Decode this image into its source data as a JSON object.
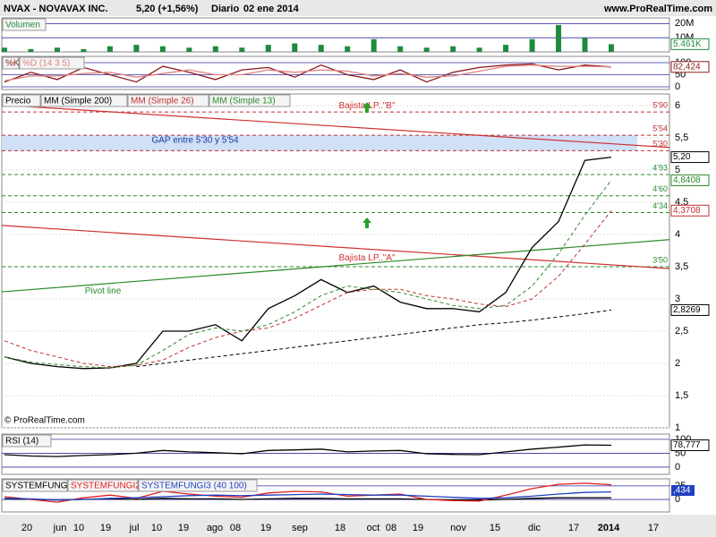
{
  "header": {
    "symbol": "NVAX - NOVAVAX INC.",
    "price": "5,20 (+1,56%)",
    "period": "Diario",
    "date": "02 ene 2014",
    "site": "www.ProRealTime.com"
  },
  "chart_data": [
    {
      "type": "bar",
      "ylim": [
        0,
        24000000
      ],
      "yticks": [
        {
          "value": 20000000,
          "label": "20M"
        },
        {
          "value": 10000000,
          "label": "10M"
        }
      ],
      "series": [
        {
          "name": "Volumen",
          "color": "#1f8a3c",
          "last_label": "5.461K",
          "values": [
            3000000,
            2000000,
            3000000,
            2000000,
            4000000,
            5000000,
            4000000,
            3000000,
            4000000,
            3000000,
            5000000,
            6000000,
            5000000,
            4000000,
            9000000,
            4000000,
            3000000,
            4000000,
            3000000,
            5000000,
            9000000,
            19000000,
            10000000,
            5461000
          ]
        }
      ]
    },
    {
      "type": "line",
      "ylim": [
        -11,
        126
      ],
      "yticks": [
        100,
        50,
        0
      ],
      "series": [
        {
          "name": "%K",
          "color": "#8b1a1a",
          "last_label": "82,424",
          "values": [
            20,
            60,
            30,
            80,
            50,
            20,
            85,
            60,
            30,
            70,
            80,
            40,
            90,
            50,
            30,
            70,
            20,
            60,
            80,
            90,
            95,
            70,
            90,
            82.424
          ]
        },
        {
          "name": "%D (14 3 5)",
          "color": "#e08080",
          "values": [
            25,
            45,
            45,
            55,
            60,
            40,
            55,
            70,
            50,
            50,
            70,
            60,
            70,
            65,
            45,
            55,
            40,
            45,
            65,
            85,
            90,
            85,
            85,
            83
          ]
        }
      ]
    },
    {
      "type": "line",
      "ylim": [
        1,
        6.18
      ],
      "yticks": [
        1,
        {
          "value": 1.5,
          "label": "1,5"
        },
        2,
        {
          "value": 2.5,
          "label": "2,5"
        },
        3,
        {
          "value": 3.5,
          "label": "3,5"
        },
        4,
        {
          "value": 4.5,
          "label": "4,5"
        },
        5,
        {
          "value": 5.5,
          "label": "5,5"
        },
        6
      ],
      "series": [
        {
          "name": "Precio",
          "color": "#000000",
          "last_label": "5,20",
          "values": [
            2.1,
            2.0,
            1.95,
            1.92,
            1.93,
            2.0,
            2.5,
            2.5,
            2.6,
            2.35,
            2.85,
            3.05,
            3.3,
            3.1,
            3.2,
            2.95,
            2.85,
            2.85,
            2.8,
            3.1,
            3.8,
            4.2,
            5.15,
            5.2
          ]
        },
        {
          "name": "MM (Simple 200)",
          "color": "#000000",
          "dash": true,
          "last_label": "2,8269",
          "values": [
            null,
            null,
            null,
            null,
            null,
            1.95,
            2.0,
            2.05,
            2.1,
            2.15,
            2.2,
            2.25,
            2.3,
            2.35,
            2.4,
            2.45,
            2.5,
            2.55,
            2.6,
            2.63,
            2.67,
            2.72,
            2.77,
            2.8269
          ]
        },
        {
          "name": "MM (Simple 26)",
          "color": "#c03030",
          "dash": true,
          "last_label": "4,3708",
          "values": [
            2.35,
            2.2,
            2.1,
            2.0,
            1.95,
            1.97,
            2.05,
            2.25,
            2.4,
            2.5,
            2.55,
            2.7,
            2.9,
            3.1,
            3.15,
            3.15,
            3.05,
            3.0,
            2.92,
            2.88,
            3.0,
            3.35,
            3.85,
            4.3708
          ]
        },
        {
          "name": "MM (Simple 13)",
          "color": "#2a8a2a",
          "dash": true,
          "last_label": "4,8408",
          "values": [
            2.1,
            2.02,
            1.98,
            1.95,
            1.93,
            1.97,
            2.2,
            2.45,
            2.55,
            2.5,
            2.6,
            2.8,
            3.05,
            3.2,
            3.15,
            3.1,
            3.0,
            2.9,
            2.85,
            2.9,
            3.2,
            3.7,
            4.3,
            4.8408
          ]
        }
      ],
      "levels": [
        {
          "value": 5.9,
          "label": "5'90",
          "color": "#c03030"
        },
        {
          "value": 5.54,
          "label": "5'54",
          "color": "#c03030"
        },
        {
          "value": 5.3,
          "label": "5'30",
          "color": "#c03030"
        },
        {
          "value": 4.93,
          "label": "4'93",
          "color": "#2a8a2a"
        },
        {
          "value": 4.6,
          "label": "4'60",
          "color": "#2a8a2a"
        },
        {
          "value": 4.34,
          "label": "4'34",
          "color": "#2a8a2a"
        },
        {
          "value": 3.5,
          "label": "3'50",
          "color": "#2a8a2a"
        }
      ],
      "gap_label": "GAP entre 5'30 y 5'54",
      "trendlines": [
        {
          "name": "Bajista LP..\"B\"",
          "color": "#d03030",
          "values": [
            6.01,
            5.35
          ]
        },
        {
          "name": "Bajista LP..\"A\"",
          "color": "#d03030",
          "values": [
            4.14,
            3.47
          ]
        },
        {
          "name": "Pivot line",
          "color": "#2a8a2a",
          "values": [
            3.11,
            3.92
          ]
        }
      ],
      "copyright": "© ProRealTime.com",
      "x_axis_labels": [
        "20",
        "jun",
        "10",
        "19",
        "jul",
        "10",
        "19",
        "ago",
        "08",
        "19",
        "sep",
        "18",
        "oct",
        "08",
        "19",
        "nov",
        "15",
        "dic",
        "17",
        "2014",
        "17"
      ]
    },
    {
      "type": "line",
      "ylim": [
        -26,
        119
      ],
      "yticks": [
        100,
        50,
        0
      ],
      "series": [
        {
          "name": "RSI (14)",
          "color": "#000000",
          "last_label": "78,777",
          "values": [
            45,
            40,
            38,
            42,
            45,
            50,
            60,
            55,
            52,
            48,
            60,
            62,
            65,
            55,
            58,
            60,
            48,
            46,
            45,
            55,
            65,
            72,
            80,
            78.777
          ]
        }
      ]
    },
    {
      "type": "line",
      "ylim": [
        -23,
        38
      ],
      "yticks": [
        25,
        0
      ],
      "value_box": ",434",
      "series": [
        {
          "name": "SYSTEMFUNGI",
          "color": "#000000",
          "values": [
            1,
            0,
            -1,
            0,
            1,
            0,
            2,
            1,
            1,
            0,
            1,
            2,
            2,
            1,
            1,
            1,
            0,
            -1,
            -1,
            0,
            2,
            3,
            3,
            3
          ]
        },
        {
          "name": "SYSTEMFUNGI2",
          "color": "#e02020",
          "values": [
            5,
            0,
            -5,
            3,
            8,
            2,
            15,
            10,
            6,
            4,
            12,
            15,
            14,
            6,
            8,
            10,
            0,
            -2,
            -3,
            8,
            20,
            28,
            30,
            27
          ]
        },
        {
          "name": "SYSTEMFUNGI3 (40 100)",
          "color": "#2040c0",
          "values": [
            2,
            1,
            -1,
            0,
            2,
            3,
            5,
            7,
            8,
            7,
            8,
            9,
            10,
            9,
            8,
            8,
            6,
            4,
            2,
            3,
            6,
            10,
            13,
            14
          ]
        }
      ]
    }
  ]
}
